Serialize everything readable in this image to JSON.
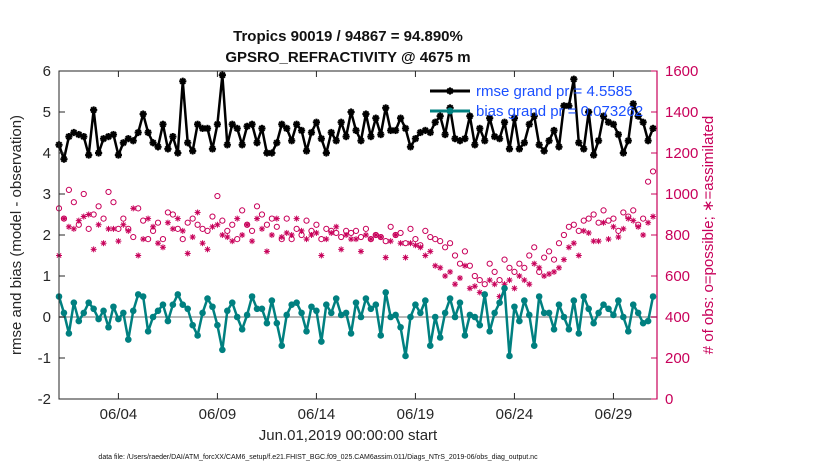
{
  "chart_data": {
    "type": "line",
    "title": "Tropics 90019 / 94867 = 94.890%",
    "subtitle": "GPSRO_REFRACTIVITY @ 4675 m",
    "xlabel": "Jun.01,2019 00:00:00 start",
    "ylabel": "rmse and bias (model - observation)",
    "ylabel_right": "# of obs: o=possible; ∗=assimilated",
    "xlim": [
      1,
      31.2
    ],
    "ylim": [
      -2,
      6
    ],
    "ylim_right": [
      0,
      1600
    ],
    "x_ticks": [
      4,
      9,
      14,
      19,
      24,
      29
    ],
    "x_tick_labels": [
      "06/04",
      "06/09",
      "06/14",
      "06/19",
      "06/24",
      "06/29"
    ],
    "y_ticks": [
      -2,
      -1,
      0,
      1,
      2,
      3,
      4,
      5,
      6
    ],
    "y_tick_labels": [
      "-2",
      "-1",
      "0",
      "1",
      "2",
      "3",
      "4",
      "5",
      "6"
    ],
    "y_right_ticks": [
      0,
      200,
      400,
      600,
      800,
      1000,
      1200,
      1400,
      1600
    ],
    "y_right_tick_labels": [
      "0",
      "200",
      "400",
      "600",
      "800",
      "1000",
      "1200",
      "1400",
      "1600"
    ],
    "footnote": "data file: /Users/raeder/DAI/ATM_forcXX/CAM6_setup/f.e21.FHIST_BGC.f09_025.CAM6assim.011/Diags_NTrS_2019-06/obs_diag_output.nc",
    "legend_position": "top-right",
    "x": [
      1.0,
      1.25,
      1.5,
      1.75,
      2.0,
      2.25,
      2.5,
      2.75,
      3.0,
      3.25,
      3.5,
      3.75,
      4.0,
      4.25,
      4.5,
      4.75,
      5.0,
      5.25,
      5.5,
      5.75,
      6.0,
      6.25,
      6.5,
      6.75,
      7.0,
      7.25,
      7.5,
      7.75,
      8.0,
      8.25,
      8.5,
      8.75,
      9.0,
      9.25,
      9.5,
      9.75,
      10.0,
      10.25,
      10.5,
      10.75,
      11.0,
      11.25,
      11.5,
      11.75,
      12.0,
      12.25,
      12.5,
      12.75,
      13.0,
      13.25,
      13.5,
      13.75,
      14.0,
      14.25,
      14.5,
      14.75,
      15.0,
      15.25,
      15.5,
      15.75,
      16.0,
      16.25,
      16.5,
      16.75,
      17.0,
      17.25,
      17.5,
      17.75,
      18.0,
      18.25,
      18.5,
      18.75,
      19.0,
      19.25,
      19.5,
      19.75,
      20.0,
      20.25,
      20.5,
      20.75,
      21.0,
      21.25,
      21.5,
      21.75,
      22.0,
      22.25,
      22.5,
      22.75,
      23.0,
      23.25,
      23.5,
      23.75,
      24.0,
      24.25,
      24.5,
      24.75,
      25.0,
      25.25,
      25.5,
      25.75,
      26.0,
      26.25,
      26.5,
      26.75,
      27.0,
      27.25,
      27.5,
      27.75,
      28.0,
      28.25,
      28.5,
      28.75,
      29.0,
      29.25,
      29.5,
      29.75,
      30.0,
      30.25,
      30.5,
      30.75,
      31.0
    ],
    "series": [
      {
        "name": "rmse grand pr = 4.5585",
        "color": "#000000",
        "marker": "asterisk",
        "axis": "left",
        "values": [
          4.2,
          3.85,
          4.4,
          4.5,
          4.45,
          4.4,
          3.95,
          5.05,
          4.0,
          4.35,
          4.4,
          4.45,
          3.95,
          4.25,
          4.35,
          4.3,
          4.5,
          4.95,
          4.5,
          4.25,
          4.15,
          4.7,
          4.1,
          4.4,
          4.0,
          5.75,
          4.25,
          4.05,
          4.7,
          4.6,
          4.6,
          4.1,
          4.7,
          5.9,
          4.2,
          4.7,
          4.6,
          4.2,
          4.65,
          4.7,
          4.25,
          4.6,
          4.0,
          4.0,
          4.25,
          4.7,
          4.6,
          4.3,
          4.7,
          4.55,
          4.05,
          4.5,
          4.75,
          4.35,
          4.0,
          4.5,
          4.3,
          4.75,
          4.4,
          5.0,
          4.55,
          4.3,
          4.95,
          4.4,
          4.85,
          4.45,
          5.1,
          4.55,
          4.55,
          4.85,
          4.6,
          4.15,
          4.35,
          4.5,
          4.55,
          4.5,
          4.75,
          4.9,
          4.45,
          5.1,
          4.35,
          4.3,
          4.35,
          4.9,
          4.2,
          4.6,
          4.3,
          4.85,
          4.4,
          4.35,
          4.75,
          4.1,
          4.85,
          4.1,
          4.25,
          4.7,
          4.9,
          4.2,
          4.05,
          4.3,
          4.55,
          4.15,
          5.15,
          5.15,
          5.8,
          4.25,
          4.1,
          5.0,
          3.95,
          4.3,
          4.9,
          4.75,
          4.7,
          4.45,
          4.0,
          4.3,
          5.2,
          4.9,
          4.75,
          4.3,
          4.6
        ]
      },
      {
        "name": "bias grand pr = 0.073262",
        "color": "#008080",
        "marker": "dot",
        "axis": "left",
        "values": [
          0.5,
          0.1,
          -0.4,
          0.35,
          -0.1,
          0.1,
          0.35,
          0.2,
          -0.05,
          0.15,
          -0.25,
          0.25,
          -0.05,
          0.1,
          -0.55,
          0.15,
          0.55,
          0.5,
          -0.35,
          0.0,
          0.15,
          0.3,
          -0.1,
          0.3,
          0.55,
          0.3,
          0.2,
          -0.2,
          -0.45,
          0.1,
          0.45,
          0.25,
          -0.2,
          -0.8,
          0.15,
          0.35,
          0.0,
          -0.3,
          0.05,
          0.5,
          0.2,
          0.2,
          -0.15,
          0.4,
          -0.15,
          -0.7,
          0.05,
          0.3,
          0.35,
          0.1,
          -0.35,
          0.25,
          0.15,
          -0.6,
          0.3,
          0.1,
          0.45,
          0.05,
          0.1,
          -0.4,
          0.35,
          0.0,
          0.45,
          0.2,
          0.3,
          -0.45,
          0.6,
          0.0,
          0.05,
          -0.25,
          -0.95,
          0.0,
          0.3,
          0.1,
          0.4,
          -0.7,
          0.0,
          -0.5,
          0.1,
          0.45,
          0.0,
          0.35,
          -0.45,
          0.05,
          0.0,
          -0.2,
          0.55,
          -0.35,
          0.1,
          0.35,
          0.7,
          -0.95,
          0.25,
          -0.1,
          0.4,
          0.05,
          -0.7,
          0.5,
          0.1,
          0.1,
          -0.3,
          0.3,
          0.0,
          -0.3,
          0.4,
          -0.4,
          0.5,
          0.2,
          -0.15,
          0.1,
          0.3,
          0.2,
          0.05,
          0.4,
          0.0,
          -0.35,
          0.3,
          0.1,
          -0.15,
          -0.1,
          0.5
        ]
      },
      {
        "name": "# of obs possible",
        "color": "#c8005a",
        "marker": "circle",
        "axis": "right",
        "values": [
          930,
          880,
          1020,
          960,
          850,
          1000,
          830,
          900,
          940,
          880,
          1010,
          960,
          830,
          880,
          830,
          790,
          930,
          870,
          780,
          820,
          860,
          780,
          910,
          900,
          830,
          780,
          860,
          880,
          850,
          830,
          820,
          890,
          990,
          870,
          820,
          850,
          780,
          920,
          850,
          820,
          940,
          900,
          850,
          880,
          840,
          780,
          880,
          780,
          830,
          800,
          870,
          820,
          850,
          780,
          830,
          820,
          810,
          790,
          820,
          810,
          820,
          790,
          830,
          780,
          800,
          790,
          770,
          840,
          800,
          810,
          760,
          830,
          780,
          750,
          820,
          790,
          780,
          770,
          740,
          760,
          700,
          660,
          720,
          650,
          600,
          580,
          560,
          660,
          620,
          580,
          680,
          640,
          620,
          660,
          640,
          700,
          740,
          620,
          690,
          720,
          680,
          760,
          800,
          840,
          850,
          820,
          870,
          880,
          900,
          860,
          920,
          870,
          880,
          820,
          910,
          890,
          920,
          850,
          880,
          1060,
          1110
        ]
      },
      {
        "name": "# of obs assimilated",
        "color": "#c8005a",
        "marker": "asterisk",
        "axis": "right",
        "values": [
          700,
          880,
          840,
          830,
          870,
          890,
          900,
          730,
          850,
          760,
          830,
          830,
          770,
          850,
          820,
          930,
          700,
          780,
          880,
          840,
          760,
          740,
          860,
          830,
          880,
          820,
          710,
          790,
          910,
          760,
          730,
          840,
          850,
          800,
          790,
          770,
          880,
          800,
          850,
          770,
          880,
          830,
          720,
          800,
          880,
          790,
          810,
          800,
          880,
          820,
          780,
          800,
          810,
          700,
          780,
          810,
          840,
          730,
          800,
          780,
          780,
          720,
          800,
          780,
          800,
          790,
          690,
          770,
          800,
          760,
          690,
          760,
          750,
          740,
          700,
          720,
          650,
          640,
          600,
          620,
          560,
          590,
          650,
          540,
          550,
          520,
          510,
          580,
          560,
          500,
          560,
          580,
          540,
          600,
          580,
          560,
          660,
          640,
          600,
          610,
          620,
          640,
          680,
          740,
          760,
          700,
          820,
          810,
          770,
          770,
          860,
          780,
          840,
          790,
          830,
          880,
          870,
          840,
          800,
          860,
          890
        ]
      }
    ],
    "hlines": [
      0
    ]
  }
}
